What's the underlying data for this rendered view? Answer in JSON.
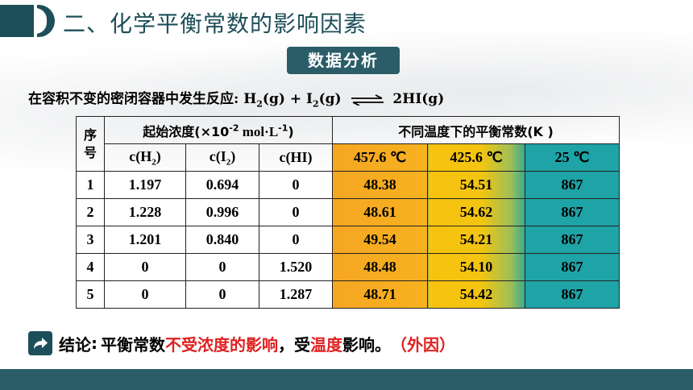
{
  "header": {
    "title": "二、化学平衡常数的影响因素",
    "badge": "数据分析"
  },
  "reaction": {
    "prefix": "在容积不变的密闭容器中发生反应",
    "colon": ":",
    "h2": "H",
    "h2_sub": "2",
    "h2_state": "(g) + I",
    "i2_sub": "2",
    "i2_state": "(g)",
    "product": "2HI(g)"
  },
  "table": {
    "idx_header_1": "序",
    "idx_header_2": "号",
    "conc_header": "起始浓度(×10",
    "conc_exp": "-2",
    "conc_unit": " mol·L",
    "conc_unit_exp": "-1",
    "conc_close": ")",
    "k_header": "不同温度下的平衡常数(K )",
    "col_h2": "c(H",
    "col_h2_sub": "2",
    "col_h2_close": ")",
    "col_i2": "c(I",
    "col_i2_sub": "2",
    "col_i2_close": ")",
    "col_hi": "c(HI)",
    "temp1": "457.6 ℃",
    "temp2": "425.6 ℃",
    "temp3": "25 ℃",
    "rows": [
      {
        "idx": "1",
        "h2": "1.197",
        "i2": "0.694",
        "hi": "0",
        "k1": "48.38",
        "k2": "54.51",
        "k3": "867"
      },
      {
        "idx": "2",
        "h2": "1.228",
        "i2": "0.996",
        "hi": "0",
        "k1": "48.61",
        "k2": "54.62",
        "k3": "867"
      },
      {
        "idx": "3",
        "h2": "1.201",
        "i2": "0.840",
        "hi": "0",
        "k1": "49.54",
        "k2": "54.21",
        "k3": "867"
      },
      {
        "idx": "4",
        "h2": "0",
        "i2": "0",
        "hi": "1.520",
        "k1": "48.48",
        "k2": "54.10",
        "k3": "867"
      },
      {
        "idx": "5",
        "h2": "0",
        "i2": "0",
        "hi": "1.287",
        "k1": "48.71",
        "k2": "54.42",
        "k3": "867"
      }
    ]
  },
  "conclusion": {
    "label": "结论",
    "colon": ":",
    "part1": "平衡常数",
    "part2_red": "不受浓度的影响",
    "part3": "，受",
    "part4_red": "温度",
    "part5": "影响。",
    "part6_red": "（外因）"
  },
  "icons": {
    "conclusion_icon": "share-arrow-icon",
    "equilibrium_arrow": "equilibrium-arrow-icon"
  },
  "colors": {
    "theme": "#1d4f5a",
    "accent_red": "#e02020",
    "k_col1": "#f5a623",
    "k_col2": "#f8c20f",
    "k_col3": "#1ea3a6"
  }
}
